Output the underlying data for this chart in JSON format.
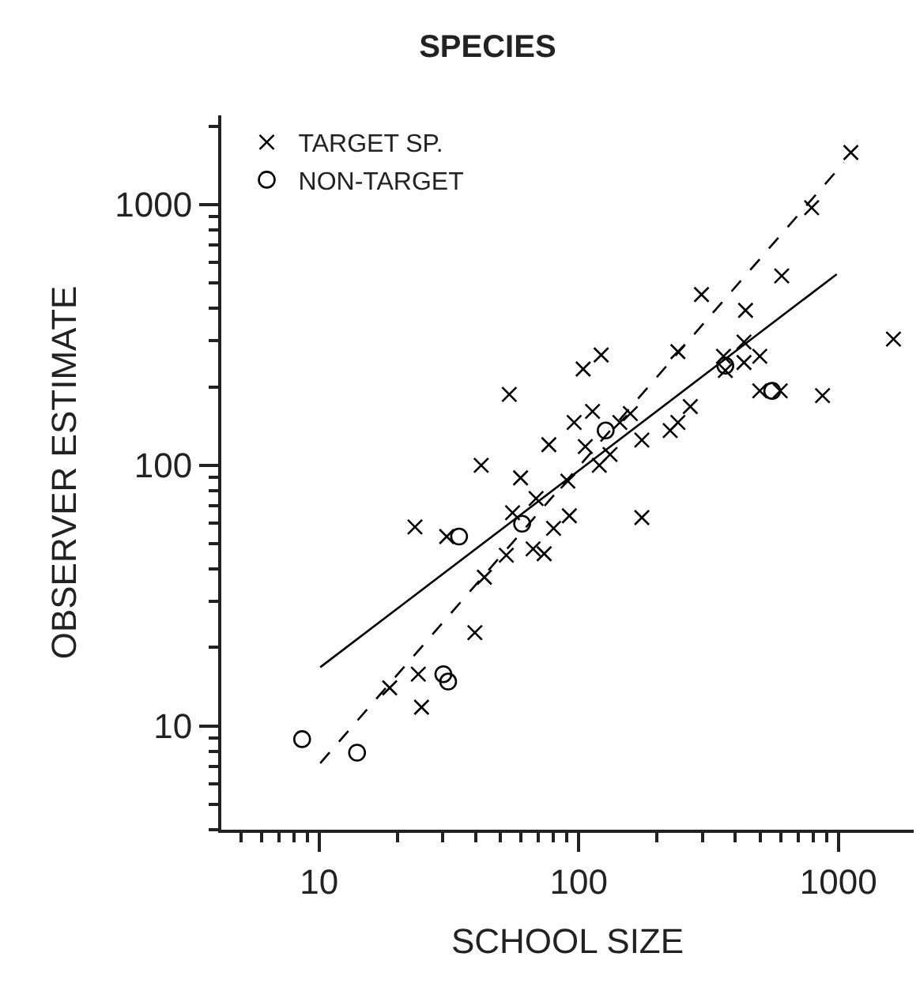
{
  "chart_data": {
    "type": "scatter",
    "title": "SPECIES",
    "xlabel": "SCHOOL SIZE",
    "ylabel": "OBSERVER ESTIMATE",
    "log": "xy",
    "grid": false,
    "legend": "top left",
    "xlim": [
      4.2,
      1950
    ],
    "ylim": [
      4,
      2200
    ],
    "xticks": [
      10,
      100,
      1000
    ],
    "yticks": [
      10,
      100,
      1000
    ],
    "series": [
      {
        "name": "TARGET SP.",
        "marker": "cross",
        "color": "#000000",
        "x": [
          23.4,
          31,
          39.8,
          24.1,
          18.7,
          24.8,
          43.3,
          52.6,
          66.7,
          73.6,
          55.6,
          68.5,
          59.7,
          42.1,
          76.7,
          106,
          90.8,
          92,
          80,
          54,
          1117,
          789,
          605,
          297,
          439,
          122,
          104,
          241,
          433,
          361,
          367,
          433,
          498,
          1630,
          498,
          597,
          869,
          113,
          96,
          158,
          144,
          269,
          241,
          225,
          175,
          132,
          120,
          175
        ],
        "values": [
          58,
          53.3,
          22.8,
          15.8,
          14,
          11.8,
          37.2,
          45.2,
          47.8,
          45.8,
          65.8,
          74.6,
          89.5,
          100,
          120,
          118,
          87,
          64,
          57.3,
          187,
          1585,
          973,
          533,
          452,
          393,
          265,
          234,
          273,
          297,
          262,
          231,
          248,
          262,
          305,
          193,
          193,
          185,
          161,
          146,
          158,
          146,
          168,
          146,
          136,
          125,
          110,
          100,
          63
        ]
      },
      {
        "name": "NON-TARGET",
        "marker": "circle",
        "color": "#000000",
        "x": [
          8.6,
          14,
          30.1,
          31.4,
          34.6,
          60.5,
          127,
          367,
          556
        ],
        "values": [
          8.9,
          7.9,
          15.8,
          14.8,
          53.3,
          59.7,
          136,
          241,
          193
        ]
      },
      {
        "type": "line",
        "line_style": "solid",
        "color": "#000000",
        "x": [
          10.1,
          986
        ],
        "values": [
          16.8,
          541
        ]
      },
      {
        "type": "line",
        "line_style": "dashed",
        "color": "#000000",
        "x": [
          10.1,
          1050
        ],
        "values": [
          7.2,
          1450
        ]
      }
    ]
  }
}
